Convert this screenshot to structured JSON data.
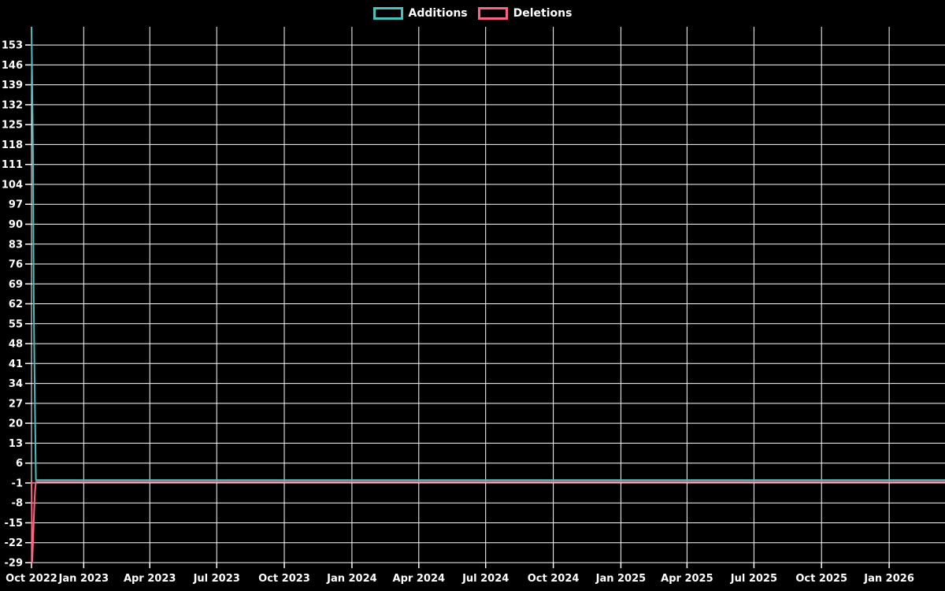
{
  "page": {
    "background": "#000000",
    "grid_color": "#ffffff",
    "text_color": "#ffffff"
  },
  "legend": {
    "items": [
      {
        "label": "Additions",
        "color": "#4bc0c0"
      },
      {
        "label": "Deletions",
        "color": "#ff6384"
      }
    ]
  },
  "chart_data": {
    "type": "line",
    "title": "",
    "xlabel": "",
    "ylabel": "",
    "grid": true,
    "legend_position": "top-center",
    "background": "#000000",
    "grid_color": "#ffffff",
    "text_color": "#ffffff",
    "x_axis": {
      "start": "2022-10-22",
      "end": "2026-03-18",
      "ticks": [
        {
          "label": "Oct 2022",
          "date": "2022-10-22"
        },
        {
          "label": "Jan 2023",
          "date": "2023-01-01"
        },
        {
          "label": "Apr 2023",
          "date": "2023-04-01"
        },
        {
          "label": "Jul 2023",
          "date": "2023-07-01"
        },
        {
          "label": "Oct 2023",
          "date": "2023-10-01"
        },
        {
          "label": "Jan 2024",
          "date": "2024-01-01"
        },
        {
          "label": "Apr 2024",
          "date": "2024-04-01"
        },
        {
          "label": "Jul 2024",
          "date": "2024-07-01"
        },
        {
          "label": "Oct 2024",
          "date": "2024-10-01"
        },
        {
          "label": "Jan 2025",
          "date": "2025-01-01"
        },
        {
          "label": "Apr 2025",
          "date": "2025-04-01"
        },
        {
          "label": "Jul 2025",
          "date": "2025-07-01"
        },
        {
          "label": "Oct 2025",
          "date": "2025-10-01"
        },
        {
          "label": "Jan 2026",
          "date": "2026-01-01"
        }
      ]
    },
    "y_axis": {
      "min": -29,
      "max": 159.4,
      "tick_step": 7,
      "ticks": [
        153,
        146,
        139,
        132,
        125,
        118,
        111,
        104,
        97,
        90,
        83,
        76,
        69,
        62,
        55,
        48,
        41,
        34,
        27,
        20,
        13,
        6,
        -1,
        -8,
        -15,
        -22,
        -29
      ]
    },
    "series": [
      {
        "name": "Deletions",
        "color": "#ff6384",
        "points": [
          [
            0,
            0
          ],
          [
            1,
            -29
          ],
          [
            2,
            -22
          ],
          [
            3,
            -15
          ],
          [
            4,
            -8
          ],
          [
            5,
            -3
          ],
          [
            6,
            -0.6
          ],
          [
            1243,
            -0.6
          ]
        ]
      },
      {
        "name": "Additions",
        "color": "#4bc0c0",
        "points": [
          [
            0,
            159.4
          ],
          [
            1,
            139
          ],
          [
            2,
            115
          ],
          [
            3,
            65
          ],
          [
            4,
            41
          ],
          [
            5,
            18.5
          ],
          [
            6,
            0
          ],
          [
            1243,
            0
          ]
        ]
      }
    ]
  }
}
